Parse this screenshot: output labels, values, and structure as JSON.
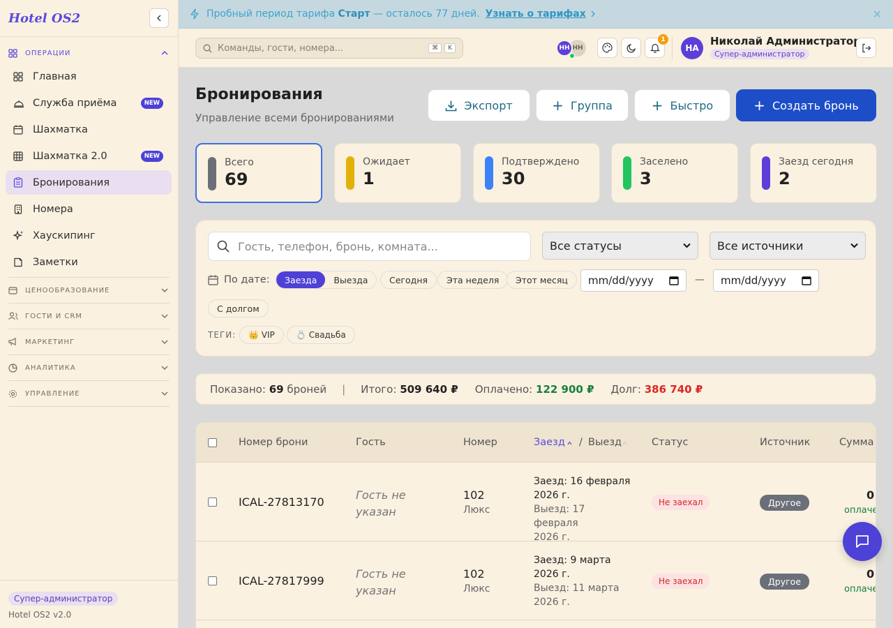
{
  "app": {
    "brand": "Hotel OS2",
    "version": "Hotel OS2 v2.0",
    "role": "Супер-администратор"
  },
  "sidebar": {
    "section_ops": "ОПЕРАЦИИ",
    "items": [
      {
        "label": "Главная",
        "icon": "dashboard-icon"
      },
      {
        "label": "Служба приёма",
        "icon": "bell-desk-icon",
        "badge": "NEW"
      },
      {
        "label": "Шахматка",
        "icon": "calendar-icon"
      },
      {
        "label": "Шахматка 2.0",
        "icon": "grid-icon",
        "badge": "NEW"
      },
      {
        "label": "Бронирования",
        "icon": "clipboard-icon"
      },
      {
        "label": "Номера",
        "icon": "building-icon"
      },
      {
        "label": "Хаускипинг",
        "icon": "sparkle-icon"
      },
      {
        "label": "Заметки",
        "icon": "note-icon"
      }
    ],
    "sections": [
      {
        "label": "ЦЕНООБРАЗОВАНИЕ",
        "icon": "wallet-icon"
      },
      {
        "label": "ГОСТИ И CRM",
        "icon": "users-icon"
      },
      {
        "label": "МАРКЕТИНГ",
        "icon": "megaphone-icon"
      },
      {
        "label": "АНАЛИТИКА",
        "icon": "pie-icon"
      },
      {
        "label": "УПРАВЛЕНИЕ",
        "icon": "gear-icon"
      }
    ]
  },
  "banner": {
    "prefix": "Пробный период тарифа",
    "plan": "Старт",
    "suffix": "— осталось 77 дней.",
    "link": "Узнать о тарифах"
  },
  "topbar": {
    "search_placeholder": "Команды, гости, номера...",
    "kbd1": "⌘",
    "kbd2": "K",
    "avatar1": "НН",
    "avatar2": "НН",
    "notif_count": "1",
    "user_initials": "НА",
    "user_name": "Николай Администратор",
    "user_role": "Супер-администратор"
  },
  "page": {
    "title": "Бронирования",
    "subtitle": "Управление всеми бронированиями",
    "btn_export": "Экспорт",
    "btn_group": "Группа",
    "btn_quick": "Быстро",
    "btn_create": "Создать бронь"
  },
  "stats": [
    {
      "label": "Всего",
      "value": "69",
      "color": "#6b6f78"
    },
    {
      "label": "Ожидает",
      "value": "1",
      "color": "#e3b008"
    },
    {
      "label": "Подтверждено",
      "value": "30",
      "color": "#3b82f6"
    },
    {
      "label": "Заселено",
      "value": "3",
      "color": "#22c55e"
    },
    {
      "label": "Заезд сегодня",
      "value": "2",
      "color": "#5b3fd8"
    }
  ],
  "filters": {
    "search_placeholder": "Гость, телефон, бронь, комната...",
    "status": "Все статусы",
    "source": "Все источники",
    "by_date": "По дате:",
    "seg_in": "Заезда",
    "seg_out": "Выезда",
    "today": "Сегодня",
    "week": "Эта неделя",
    "month": "Этот месяц",
    "date_ph": "mm/dd/yyyy",
    "dash": "—",
    "debt": "С долгом",
    "tags_label": "ТЕГИ:",
    "tag_vip": "👑 VIP",
    "tag_wedding": "💍 Свадьба"
  },
  "summary": {
    "shown_label": "Показано:",
    "shown_count": "69",
    "shown_unit": "броней",
    "sep": "|",
    "total_label": "Итого:",
    "total": "509 640 ₽",
    "paid_label": "Оплачено:",
    "paid": "122 900 ₽",
    "debt_label": "Долг:",
    "debt": "386 740 ₽"
  },
  "table": {
    "headers": {
      "number": "Номер брони",
      "guest": "Гость",
      "room": "Номер",
      "checkin": "Заезд",
      "slash": "/",
      "checkout": "Выезд",
      "status": "Статус",
      "source": "Источник",
      "sum": "Сумма"
    },
    "rows": [
      {
        "id": "ICAL-27813170",
        "guest": "Гость не указан",
        "room": "102",
        "room_type": "Люкс",
        "in1": "Заезд: 16 февраля",
        "in2": "2026 г.",
        "out1": "Выезд: 17 февраля",
        "out2": "2026 г.",
        "status": "Не заехал",
        "source": "Другое",
        "sum": "0",
        "sum_note": "оплачено"
      },
      {
        "id": "ICAL-27817999",
        "guest": "Гость не указан",
        "room": "102",
        "room_type": "Люкс",
        "in1": "Заезд: 9 марта",
        "in2": "2026 г.",
        "out1": "Выезд: 11 марта",
        "out2": "2026 г.",
        "status": "Не заехал",
        "source": "Другое",
        "sum": "0",
        "sum_note": "оплачено"
      }
    ]
  }
}
